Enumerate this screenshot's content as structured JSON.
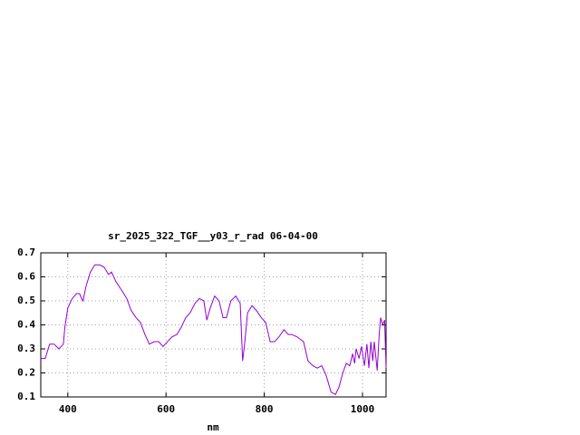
{
  "chart_data": {
    "type": "line",
    "title": "sr_2025_322_TGF__y03_r_rad 06-04-00",
    "x_label": "nm",
    "x": [
      345,
      354,
      363,
      372,
      382,
      391,
      394,
      400,
      409,
      418,
      424,
      428,
      431,
      437,
      446,
      455,
      465,
      474,
      483,
      489,
      498,
      511,
      520,
      529,
      539,
      548,
      557,
      566,
      576,
      585,
      594,
      603,
      612,
      622,
      631,
      640,
      649,
      659,
      668,
      677,
      683,
      690,
      699,
      708,
      716,
      723,
      732,
      742,
      751,
      756,
      760,
      766,
      775,
      784,
      794,
      803,
      812,
      821,
      830,
      840,
      849,
      856,
      867,
      880,
      889,
      899,
      908,
      917,
      926,
      936,
      945,
      952,
      960,
      967,
      974,
      980,
      984,
      987,
      993,
      998,
      1004,
      1009,
      1013,
      1017,
      1021,
      1024,
      1030,
      1034,
      1037,
      1041,
      1045,
      1048
    ],
    "series": [
      {
        "color": "#9400d3",
        "values": [
          0.26,
          0.26,
          0.32,
          0.32,
          0.3,
          0.32,
          0.39,
          0.47,
          0.51,
          0.53,
          0.53,
          0.51,
          0.5,
          0.56,
          0.62,
          0.65,
          0.65,
          0.64,
          0.61,
          0.62,
          0.58,
          0.54,
          0.51,
          0.46,
          0.43,
          0.41,
          0.36,
          0.32,
          0.33,
          0.33,
          0.31,
          0.33,
          0.35,
          0.36,
          0.39,
          0.43,
          0.45,
          0.49,
          0.51,
          0.5,
          0.42,
          0.47,
          0.52,
          0.5,
          0.43,
          0.43,
          0.5,
          0.52,
          0.49,
          0.25,
          0.32,
          0.45,
          0.48,
          0.46,
          0.43,
          0.41,
          0.33,
          0.33,
          0.35,
          0.38,
          0.36,
          0.36,
          0.35,
          0.33,
          0.25,
          0.23,
          0.22,
          0.23,
          0.19,
          0.12,
          0.11,
          0.14,
          0.2,
          0.24,
          0.23,
          0.28,
          0.24,
          0.3,
          0.26,
          0.31,
          0.23,
          0.32,
          0.22,
          0.33,
          0.25,
          0.33,
          0.21,
          0.36,
          0.43,
          0.4,
          0.42,
          0.22
        ]
      }
    ],
    "xlim": [
      345,
      1048
    ],
    "xticks": [
      400,
      600,
      800,
      1000
    ],
    "ylim": [
      0.1,
      0.7
    ],
    "yticks": [
      0.1,
      0.2,
      0.3,
      0.4,
      0.5,
      0.6,
      0.7
    ],
    "grid": true
  }
}
